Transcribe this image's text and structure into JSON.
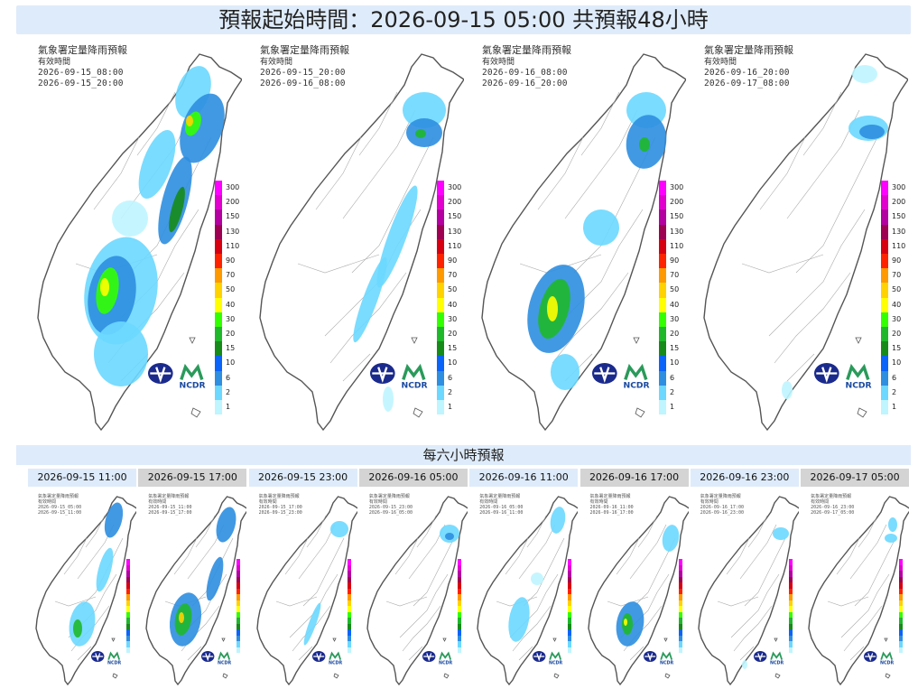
{
  "title": "預報起始時間：2026-09-15 05:00  共預報48小時",
  "big_panels": [
    {
      "title": "氣象署定量降雨預報",
      "subtitle": "有效時間",
      "start": "2026-09-15_08:00",
      "end": "2026-09-15_20:00"
    },
    {
      "title": "氣象署定量降雨預報",
      "subtitle": "有效時間",
      "start": "2026-09-15_20:00",
      "end": "2026-09-16_08:00"
    },
    {
      "title": "氣象署定量降雨預報",
      "subtitle": "有效時間",
      "start": "2026-09-16_08:00",
      "end": "2026-09-16_20:00"
    },
    {
      "title": "氣象署定量降雨預報",
      "subtitle": "有效時間",
      "start": "2026-09-16_20:00",
      "end": "2026-09-17_08:00"
    }
  ],
  "legend": {
    "levels": [
      "300",
      "200",
      "150",
      "130",
      "110",
      "90",
      "70",
      "50",
      "40",
      "30",
      "20",
      "15",
      "10",
      "6",
      "2",
      "1"
    ],
    "colors": [
      "#fe00ff",
      "#e100ce",
      "#b400a1",
      "#9e0052",
      "#d60010",
      "#ff2200",
      "#ff9900",
      "#ffd200",
      "#ffff00",
      "#32ff00",
      "#1fb82b",
      "#168b1a",
      "#0a64fa",
      "#2e8ee0",
      "#6cd8ff",
      "#bff5ff"
    ]
  },
  "logos": {
    "agency": "CWA-logo-icon",
    "ncdr_text": "NCDR"
  },
  "six_hour_title": "每六小時預報",
  "six_hour_panels": [
    {
      "label": "2026-09-15 11:00",
      "style": "blue",
      "start": "2026-09-15_05:00",
      "end": "2026-09-15_11:00"
    },
    {
      "label": "2026-09-15 17:00",
      "style": "gray",
      "start": "2026-09-15_11:00",
      "end": "2026-09-15_17:00"
    },
    {
      "label": "2026-09-15 23:00",
      "style": "blue",
      "start": "2026-09-15_17:00",
      "end": "2026-09-15_23:00"
    },
    {
      "label": "2026-09-16 05:00",
      "style": "gray",
      "start": "2026-09-15_23:00",
      "end": "2026-09-16_05:00"
    },
    {
      "label": "2026-09-16 11:00",
      "style": "blue",
      "start": "2026-09-16_05:00",
      "end": "2026-09-16_11:00"
    },
    {
      "label": "2026-09-16 17:00",
      "style": "gray",
      "start": "2026-09-16_11:00",
      "end": "2026-09-16_17:00"
    },
    {
      "label": "2026-09-16 23:00",
      "style": "blue",
      "start": "2026-09-16_17:00",
      "end": "2026-09-16_23:00"
    },
    {
      "label": "2026-09-17 05:00",
      "style": "gray",
      "start": "2026-09-16_23:00",
      "end": "2026-09-17_05:00"
    }
  ]
}
